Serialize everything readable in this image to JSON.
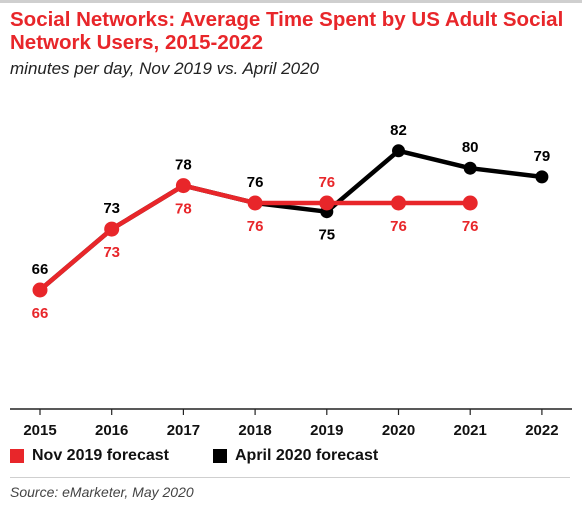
{
  "title": "Social Networks: Average Time Spent by US Adult Social Network Users, 2015-2022",
  "subtitle": "minutes per day, Nov 2019 vs. April 2020",
  "source": "Source: eMarketer, May 2020",
  "chart_data": {
    "type": "line",
    "x": [
      "2015",
      "2016",
      "2017",
      "2018",
      "2019",
      "2020",
      "2021",
      "2022"
    ],
    "ylim": [
      60,
      85
    ],
    "grid": false,
    "legend_position": "bottom-left",
    "series": [
      {
        "name": "April 2020 forecast",
        "color": "#000000",
        "values": [
          66,
          73,
          78,
          76,
          75,
          82,
          80,
          79
        ]
      },
      {
        "name": "Nov 2019 forecast",
        "color": "#e8262a",
        "values": [
          66,
          73,
          78,
          76,
          76,
          76,
          76,
          null
        ]
      }
    ]
  }
}
